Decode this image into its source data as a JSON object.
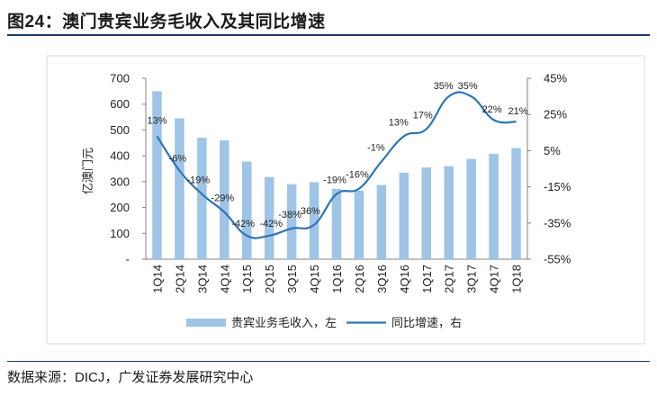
{
  "title": "图24：澳门贵宾业务毛收入及其同比增速",
  "source": "数据来源：DICJ，广发证券发展研究中心",
  "colors": {
    "bar": "#9ec4e6",
    "line": "#2f75b5",
    "axis": "#808080",
    "title_rule": "#1a3a6a"
  },
  "chart_data": {
    "type": "bar+line",
    "categories": [
      "1Q14",
      "2Q14",
      "3Q14",
      "4Q14",
      "1Q15",
      "2Q15",
      "3Q15",
      "4Q15",
      "1Q16",
      "2Q16",
      "3Q16",
      "4Q16",
      "1Q17",
      "2Q17",
      "3Q17",
      "4Q17",
      "1Q18"
    ],
    "series": [
      {
        "name": "贵宾业务毛收入，左",
        "type": "bar",
        "axis": "left",
        "values": [
          650,
          545,
          470,
          460,
          378,
          318,
          290,
          298,
          272,
          265,
          287,
          335,
          355,
          360,
          388,
          408,
          430
        ]
      },
      {
        "name": "同比增速，右",
        "type": "line",
        "axis": "right",
        "smooth": true,
        "values": [
          13,
          -6,
          -19,
          -29,
          -42,
          -42,
          -38,
          -36,
          -19,
          -16,
          -1,
          13,
          17,
          35,
          35,
          22,
          21
        ],
        "labels": [
          "13%",
          "-6%",
          "-19%",
          "-29%",
          "-42%",
          "-42%",
          "-38%",
          "-36%",
          "-19%",
          "-16%",
          "-1%",
          "13%",
          "17%",
          "35%",
          "35%",
          "22%",
          "21%"
        ]
      }
    ],
    "y_left": {
      "ylabel": "亿澳门元",
      "ylim": [
        0,
        700
      ],
      "ticks": [
        "-",
        "100",
        "200",
        "300",
        "400",
        "500",
        "600",
        "700"
      ]
    },
    "y_right": {
      "ylim": [
        -55,
        45
      ],
      "ticks": [
        "-55%",
        "-35%",
        "-15%",
        "5%",
        "25%",
        "45%"
      ]
    },
    "legend": {
      "position": "bottom",
      "items": [
        "贵宾业务毛收入，左",
        "同比增速，右"
      ]
    }
  }
}
